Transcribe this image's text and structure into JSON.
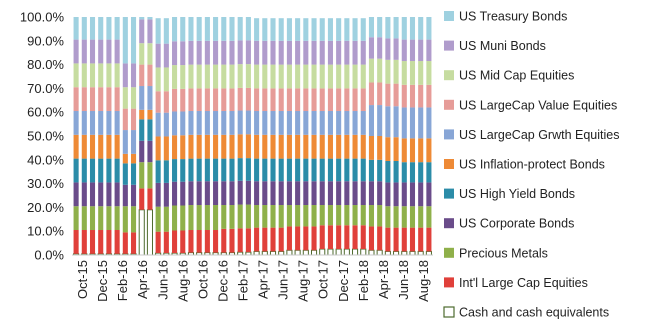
{
  "chart_data": {
    "type": "bar",
    "stacked": true,
    "normalized": true,
    "x_tick_labels": [
      "Oct-15",
      "Dec-15",
      "Feb-16",
      "Apr-16",
      "Jun-16",
      "Aug-16",
      "Oct-16",
      "Dec-16",
      "Feb-17",
      "Apr-17",
      "Jun-17",
      "Aug-17",
      "Oct-17",
      "Dec-17",
      "Feb-18",
      "Apr-18",
      "Jun-18",
      "Aug-18"
    ],
    "y_tick_labels": [
      "0.0%",
      "10.0%",
      "20.0%",
      "30.0%",
      "40.0%",
      "50.0%",
      "60.0%",
      "70.0%",
      "80.0%",
      "90.0%",
      "100.0%"
    ],
    "ylim": [
      0,
      100
    ],
    "grid": false,
    "legend_position": "right",
    "series": [
      {
        "name": "Cash and cash equivalents",
        "color": "#ffffff",
        "border": "#4e6b2e",
        "values": [
          0.5,
          0.5,
          0.5,
          0.5,
          0.5,
          0.5,
          0.5,
          0.5,
          19,
          19,
          0.8,
          0.8,
          0.8,
          0.8,
          1,
          1,
          1,
          1,
          1,
          1,
          1.2,
          1.2,
          1.5,
          1.5,
          1.5,
          1.5,
          2,
          2,
          2,
          2,
          2.5,
          2.5,
          2.5,
          2.5,
          2.5,
          2.5,
          2,
          2,
          1.5,
          1.5,
          1.5,
          1.5,
          1.5,
          1.5
        ]
      },
      {
        "name": "Int'l Large Cap Equities",
        "color": "#e0403a",
        "values": [
          10,
          10,
          10,
          10,
          10,
          10,
          9,
          9,
          9,
          9,
          9,
          9,
          9.5,
          9.5,
          9.5,
          9.5,
          9.5,
          9.5,
          10,
          10,
          10,
          10,
          10,
          10,
          10,
          10,
          10,
          10,
          10,
          10,
          10,
          10,
          10,
          10,
          10,
          10,
          10,
          10,
          10,
          10,
          10,
          10,
          10,
          10
        ]
      },
      {
        "name": "Precious Metals",
        "color": "#8fb04a",
        "values": [
          10,
          10,
          10,
          10,
          10,
          10,
          11,
          11,
          11,
          11,
          10.5,
          10.5,
          10.5,
          10.5,
          10.5,
          10.5,
          10.5,
          10.5,
          10,
          10,
          10,
          10,
          9.5,
          9.5,
          9.5,
          9.5,
          9,
          9,
          9,
          9,
          8.5,
          8.5,
          8.5,
          8.5,
          8.5,
          8.5,
          9,
          9,
          9,
          9,
          9,
          9,
          9,
          9
        ]
      },
      {
        "name": "US Corporate Bonds",
        "color": "#6a4c8a",
        "values": [
          10,
          10,
          10,
          10,
          10,
          10,
          9,
          9,
          9,
          9,
          10,
          10,
          10,
          10,
          10,
          10,
          10,
          10,
          10,
          10,
          10,
          10,
          10,
          10,
          10,
          10,
          10,
          10,
          10,
          10,
          10,
          10,
          10,
          10,
          10,
          10,
          10,
          10,
          10,
          10,
          10,
          10,
          10,
          10
        ]
      },
      {
        "name": "US High Yield Bonds",
        "color": "#2b8ca8",
        "values": [
          10,
          10,
          10,
          10,
          10,
          10,
          9,
          9,
          9,
          9,
          9.5,
          9.5,
          9.5,
          9.5,
          9.5,
          9.5,
          9.5,
          9.5,
          9.5,
          9.5,
          9.5,
          9.5,
          9.5,
          9.5,
          9.5,
          9.5,
          9.5,
          9.5,
          9.5,
          9.5,
          9.5,
          9.5,
          9.5,
          9.5,
          9.5,
          9.5,
          9,
          9,
          9,
          9,
          8.5,
          8.5,
          8.5,
          8.5
        ]
      },
      {
        "name": "US Inflation-protect Bonds",
        "color": "#ee8a36",
        "values": [
          10,
          10,
          10,
          10,
          10,
          10,
          4,
          4,
          4,
          4,
          10,
          10,
          10,
          10,
          10,
          10,
          10,
          10,
          10,
          10,
          10,
          10,
          10,
          10,
          10,
          10,
          10,
          10,
          10,
          10,
          10,
          10,
          10,
          10,
          10,
          10,
          10,
          10,
          10,
          10,
          10,
          10,
          10,
          10
        ]
      },
      {
        "name": "US LargeCap Grwth Equities",
        "color": "#88a6d6",
        "values": [
          10,
          10,
          10,
          10,
          10,
          10,
          10,
          10,
          10,
          10,
          10,
          10,
          10,
          10,
          10,
          10,
          10,
          10,
          10,
          10,
          10,
          10,
          10,
          10,
          10,
          10,
          10,
          10,
          10,
          10,
          10,
          10,
          10,
          10,
          10,
          10,
          13,
          13,
          13,
          13,
          13,
          13,
          13,
          13
        ]
      },
      {
        "name": "US LargeCap Value Equities",
        "color": "#e69c98",
        "values": [
          10,
          10,
          10,
          10,
          10,
          10,
          9,
          9,
          9,
          9,
          9,
          9,
          9.5,
          9.5,
          9.5,
          9.5,
          9.5,
          9.5,
          9.5,
          9.5,
          9.5,
          9.5,
          9.5,
          9.5,
          9.5,
          9.5,
          9.5,
          9.5,
          9.5,
          9.5,
          9.5,
          9.5,
          9.5,
          9.5,
          9.5,
          9.5,
          9.5,
          9.5,
          9.5,
          9.5,
          9.5,
          9.5,
          9.5,
          9.5
        ]
      },
      {
        "name": "US Mid Cap Equities",
        "color": "#c6dca0",
        "values": [
          10,
          10,
          10,
          10,
          10,
          10,
          9,
          9,
          9,
          9,
          10,
          10,
          10,
          10,
          10,
          10,
          10,
          10,
          10,
          10,
          10,
          10,
          10,
          10,
          10,
          10,
          10,
          10,
          10,
          10,
          10,
          10,
          10,
          10,
          10,
          10,
          10,
          10,
          10,
          10,
          10,
          10,
          10,
          10
        ]
      },
      {
        "name": "US Muni Bonds",
        "color": "#b09ccc",
        "values": [
          10,
          10,
          10,
          10,
          10,
          10,
          10,
          10,
          10,
          10,
          10,
          10,
          10,
          10,
          10,
          10,
          10,
          10,
          10,
          10,
          10,
          10,
          10,
          10,
          10,
          10,
          10,
          10,
          10,
          10,
          10,
          10,
          10,
          10,
          10,
          10,
          9,
          9,
          9,
          9,
          9,
          9,
          9,
          9
        ]
      },
      {
        "name": "US Treasury Bonds",
        "color": "#9fd1e0",
        "values": [
          9.5,
          9.5,
          9.5,
          9.5,
          9.5,
          9.5,
          19.5,
          19.5,
          1,
          1,
          10.7,
          10.7,
          10.2,
          10.2,
          10,
          10,
          10,
          10,
          10,
          10,
          9.8,
          9.8,
          9.5,
          9.5,
          9.5,
          9.5,
          9.5,
          9.5,
          9.5,
          9.5,
          9.5,
          9.5,
          9.5,
          9.5,
          9.5,
          9.5,
          8.5,
          8.5,
          9,
          9,
          9.5,
          9.5,
          9.5,
          9.5
        ]
      }
    ]
  }
}
